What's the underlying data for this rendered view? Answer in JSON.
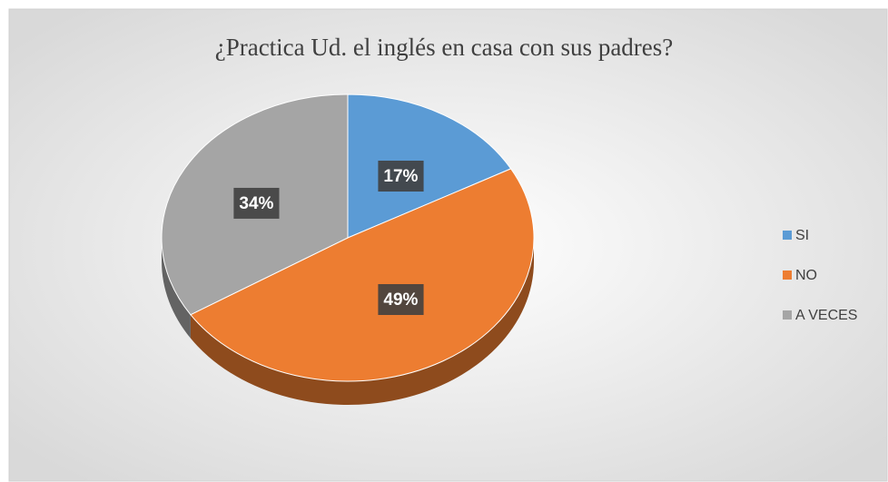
{
  "chart_data": {
    "type": "pie",
    "title": "¿Practica Ud. el inglés en casa con sus padres?",
    "categories": [
      "SI",
      "NO",
      "A VECES"
    ],
    "values": [
      17,
      49,
      34
    ],
    "value_labels": [
      "17%",
      "49%",
      "34%"
    ],
    "colors": [
      "#5b9bd5",
      "#ed7d31",
      "#a5a5a5"
    ],
    "legend": "right"
  }
}
